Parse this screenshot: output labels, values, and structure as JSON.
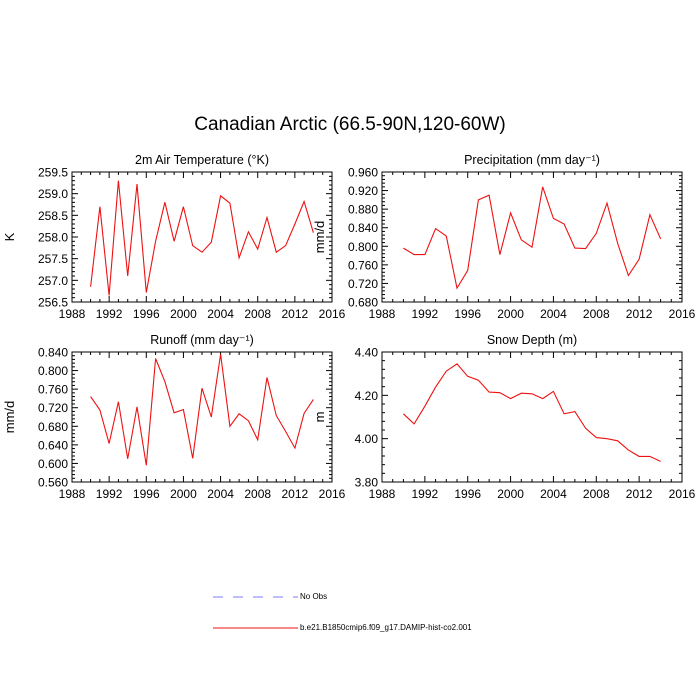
{
  "figure": {
    "title": "Canadian Arctic (66.5-90N,120-60W)"
  },
  "legend": [
    {
      "label": "No Obs",
      "color": "#7b7bff",
      "dash": "dashed"
    },
    {
      "label": "b.e21.B1850cmip6.f09_g17.DAMIP-hist-co2.001",
      "color": "#ee1111",
      "dash": "solid"
    }
  ],
  "colors": {
    "series": "#ee1111",
    "obs": "#7b7bff"
  },
  "chart_data": [
    {
      "type": "line",
      "title": "2m Air Temperature",
      "title_unit": "(°K)",
      "ylabel": "K",
      "xlim": [
        1988,
        2016
      ],
      "ylim": [
        256.5,
        259.5
      ],
      "xticks": [
        "1988",
        "1992",
        "1996",
        "2000",
        "2004",
        "2008",
        "2012",
        "2016"
      ],
      "yticks": [
        "256.5",
        "257.0",
        "257.5",
        "258.0",
        "258.5",
        "259.0",
        "259.5"
      ],
      "series": [
        {
          "x": [
            1990,
            1991,
            1992,
            1993,
            1994,
            1995,
            1996,
            1997,
            1998,
            1999,
            2000,
            2001,
            2002,
            2003,
            2004,
            2005,
            2006,
            2007,
            2008,
            2009,
            2010,
            2011,
            2012,
            2013,
            2014
          ],
          "values": [
            256.85,
            258.7,
            256.65,
            259.3,
            257.1,
            259.22,
            256.72,
            257.9,
            258.8,
            257.9,
            258.7,
            257.8,
            257.65,
            257.88,
            258.95,
            258.78,
            257.52,
            258.12,
            257.72,
            258.45,
            257.65,
            257.8,
            258.3,
            258.82,
            258.1
          ]
        }
      ]
    },
    {
      "type": "line",
      "title": "Precipitation",
      "title_unit": "(mm day⁻¹)",
      "ylabel": "mm/d",
      "xlim": [
        1988,
        2016
      ],
      "ylim": [
        0.68,
        0.96
      ],
      "xticks": [
        "1988",
        "1992",
        "1996",
        "2000",
        "2004",
        "2008",
        "2012",
        "2016"
      ],
      "yticks": [
        "0.680",
        "0.720",
        "0.760",
        "0.800",
        "0.840",
        "0.880",
        "0.920",
        "0.960"
      ],
      "series": [
        {
          "x": [
            1990,
            1991,
            1992,
            1993,
            1994,
            1995,
            1996,
            1997,
            1998,
            1999,
            2000,
            2001,
            2002,
            2003,
            2004,
            2005,
            2006,
            2007,
            2008,
            2009,
            2010,
            2011,
            2012,
            2013,
            2014
          ],
          "values": [
            0.796,
            0.782,
            0.782,
            0.838,
            0.822,
            0.71,
            0.748,
            0.9,
            0.91,
            0.782,
            0.872,
            0.814,
            0.798,
            0.928,
            0.86,
            0.848,
            0.796,
            0.795,
            0.828,
            0.893,
            0.806,
            0.737,
            0.772,
            0.868,
            0.816
          ]
        }
      ]
    },
    {
      "type": "line",
      "title": "Runoff",
      "title_unit": "(mm day⁻¹)",
      "ylabel": "mm/d",
      "xlim": [
        1988,
        2016
      ],
      "ylim": [
        0.56,
        0.84
      ],
      "xticks": [
        "1988",
        "1992",
        "1996",
        "2000",
        "2004",
        "2008",
        "2012",
        "2016"
      ],
      "yticks": [
        "0.560",
        "0.600",
        "0.640",
        "0.680",
        "0.720",
        "0.760",
        "0.800",
        "0.840"
      ],
      "series": [
        {
          "x": [
            1990,
            1991,
            1992,
            1993,
            1994,
            1995,
            1996,
            1997,
            1998,
            1999,
            2000,
            2001,
            2002,
            2003,
            2004,
            2005,
            2006,
            2007,
            2008,
            2009,
            2010,
            2011,
            2012,
            2013,
            2014
          ],
          "values": [
            0.744,
            0.715,
            0.643,
            0.733,
            0.61,
            0.722,
            0.596,
            0.826,
            0.776,
            0.709,
            0.716,
            0.611,
            0.762,
            0.7,
            0.835,
            0.68,
            0.707,
            0.692,
            0.651,
            0.785,
            0.703,
            0.669,
            0.633,
            0.708,
            0.738
          ]
        }
      ]
    },
    {
      "type": "line",
      "title": "Snow Depth",
      "title_unit": "(m)",
      "ylabel": "m",
      "xlim": [
        1988,
        2016
      ],
      "ylim": [
        3.8,
        4.4
      ],
      "xticks": [
        "1988",
        "1992",
        "1996",
        "2000",
        "2004",
        "2008",
        "2012",
        "2016"
      ],
      "yticks": [
        "3.80",
        "4.00",
        "4.20",
        "4.40"
      ],
      "series": [
        {
          "x": [
            1990,
            1991,
            1992,
            1993,
            1994,
            1995,
            1996,
            1997,
            1998,
            1999,
            2000,
            2001,
            2002,
            2003,
            2004,
            2005,
            2006,
            2007,
            2008,
            2009,
            2010,
            2011,
            2012,
            2013,
            2014
          ],
          "values": [
            4.115,
            4.068,
            4.15,
            4.238,
            4.312,
            4.345,
            4.288,
            4.27,
            4.215,
            4.212,
            4.185,
            4.21,
            4.207,
            4.185,
            4.218,
            4.115,
            4.125,
            4.048,
            4.005,
            4.0,
            3.99,
            3.947,
            3.918,
            3.918,
            3.895
          ]
        }
      ]
    }
  ]
}
